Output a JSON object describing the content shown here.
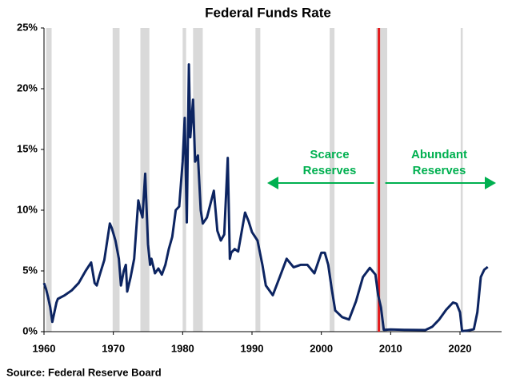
{
  "chart_data": {
    "type": "line",
    "title": "Federal Funds Rate",
    "source": "Source: Federal Reserve Board",
    "color": "#0c2461",
    "xlim": [
      1960,
      2026
    ],
    "xticks": [
      1960,
      1970,
      1980,
      1990,
      2000,
      2010,
      2020
    ],
    "ylim": [
      0,
      25
    ],
    "yticks": [
      {
        "value": 0,
        "label": "0%"
      },
      {
        "value": 5,
        "label": "5%"
      },
      {
        "value": 10,
        "label": "10%"
      },
      {
        "value": 15,
        "label": "15%"
      },
      {
        "value": 20,
        "label": "20%"
      },
      {
        "value": 25,
        "label": "25%"
      }
    ],
    "recessions": [
      [
        1960.3,
        1961.1
      ],
      [
        1969.9,
        1970.9
      ],
      [
        1973.9,
        1975.2
      ],
      [
        1980.0,
        1980.5
      ],
      [
        1981.5,
        1982.9
      ],
      [
        1990.5,
        1991.2
      ],
      [
        2001.2,
        2001.9
      ],
      [
        2007.9,
        2009.5
      ],
      [
        2020.1,
        2020.4
      ]
    ],
    "recession_color": "#d9d9d9",
    "vline": 2008.3,
    "vline_color": "#e31a1c",
    "annotation_color": "#00b050",
    "annotations": [
      [
        "Scarce",
        "Reserves"
      ],
      [
        "Abundant",
        "Reserves"
      ]
    ],
    "x": [
      1960,
      1960.3,
      1960.6,
      1960.9,
      1961.2,
      1961.5,
      1961.8,
      1962,
      1963,
      1964,
      1965,
      1966,
      1966.8,
      1967.3,
      1967.6,
      1968,
      1968.7,
      1969.5,
      1969.8,
      1970.3,
      1970.8,
      1971.1,
      1971.5,
      1971.8,
      1972.0,
      1972.5,
      1973,
      1973.6,
      1973.9,
      1974.2,
      1974.6,
      1975.0,
      1975.3,
      1975.5,
      1976,
      1976.5,
      1977,
      1977.5,
      1978,
      1978.5,
      1979,
      1979.5,
      1980.0,
      1980.3,
      1980.6,
      1980.9,
      1981.1,
      1981.5,
      1981.8,
      1982.2,
      1982.6,
      1982.9,
      1983.5,
      1984.5,
      1985,
      1985.5,
      1986,
      1986.5,
      1986.8,
      1987,
      1987.5,
      1988,
      1989,
      1989.5,
      1990,
      1990.8,
      1991.5,
      1992,
      1993,
      1994,
      1995,
      1996,
      1997,
      1998,
      1999,
      2000,
      2000.5,
      2001,
      2001.5,
      2002,
      2003,
      2004,
      2005,
      2006,
      2007,
      2007.8,
      2008.2,
      2008.6,
      2009,
      2010,
      2012,
      2015,
      2016,
      2017,
      2018,
      2019,
      2019.5,
      2020,
      2020.3,
      2021,
      2022,
      2022.5,
      2023,
      2023.5,
      2024
    ],
    "values": [
      4.0,
      3.5,
      2.8,
      2.0,
      0.8,
      1.6,
      2.4,
      2.7,
      3.0,
      3.4,
      4.0,
      5.0,
      5.7,
      4.0,
      3.8,
      4.6,
      5.9,
      8.9,
      8.5,
      7.5,
      6.0,
      3.8,
      5.0,
      5.5,
      3.3,
      4.5,
      6.0,
      10.8,
      10.0,
      9.4,
      13.0,
      7.2,
      5.5,
      6.0,
      4.8,
      5.2,
      4.7,
      5.5,
      6.8,
      7.8,
      10.0,
      10.3,
      14.0,
      17.6,
      9.0,
      22.0,
      16.0,
      19.1,
      14.0,
      14.5,
      10.0,
      8.9,
      9.4,
      11.6,
      8.3,
      7.5,
      8.0,
      14.3,
      6.0,
      6.5,
      6.8,
      6.6,
      9.8,
      9.1,
      8.2,
      7.5,
      5.5,
      3.8,
      3.0,
      4.5,
      6.0,
      5.3,
      5.5,
      5.5,
      4.8,
      6.5,
      6.5,
      5.5,
      3.5,
      1.75,
      1.2,
      1.0,
      2.5,
      4.5,
      5.25,
      4.7,
      3.0,
      2.0,
      0.15,
      0.18,
      0.15,
      0.13,
      0.4,
      1.0,
      1.8,
      2.4,
      2.3,
      1.6,
      0.05,
      0.08,
      0.2,
      1.6,
      4.5,
      5.1,
      5.33
    ]
  }
}
